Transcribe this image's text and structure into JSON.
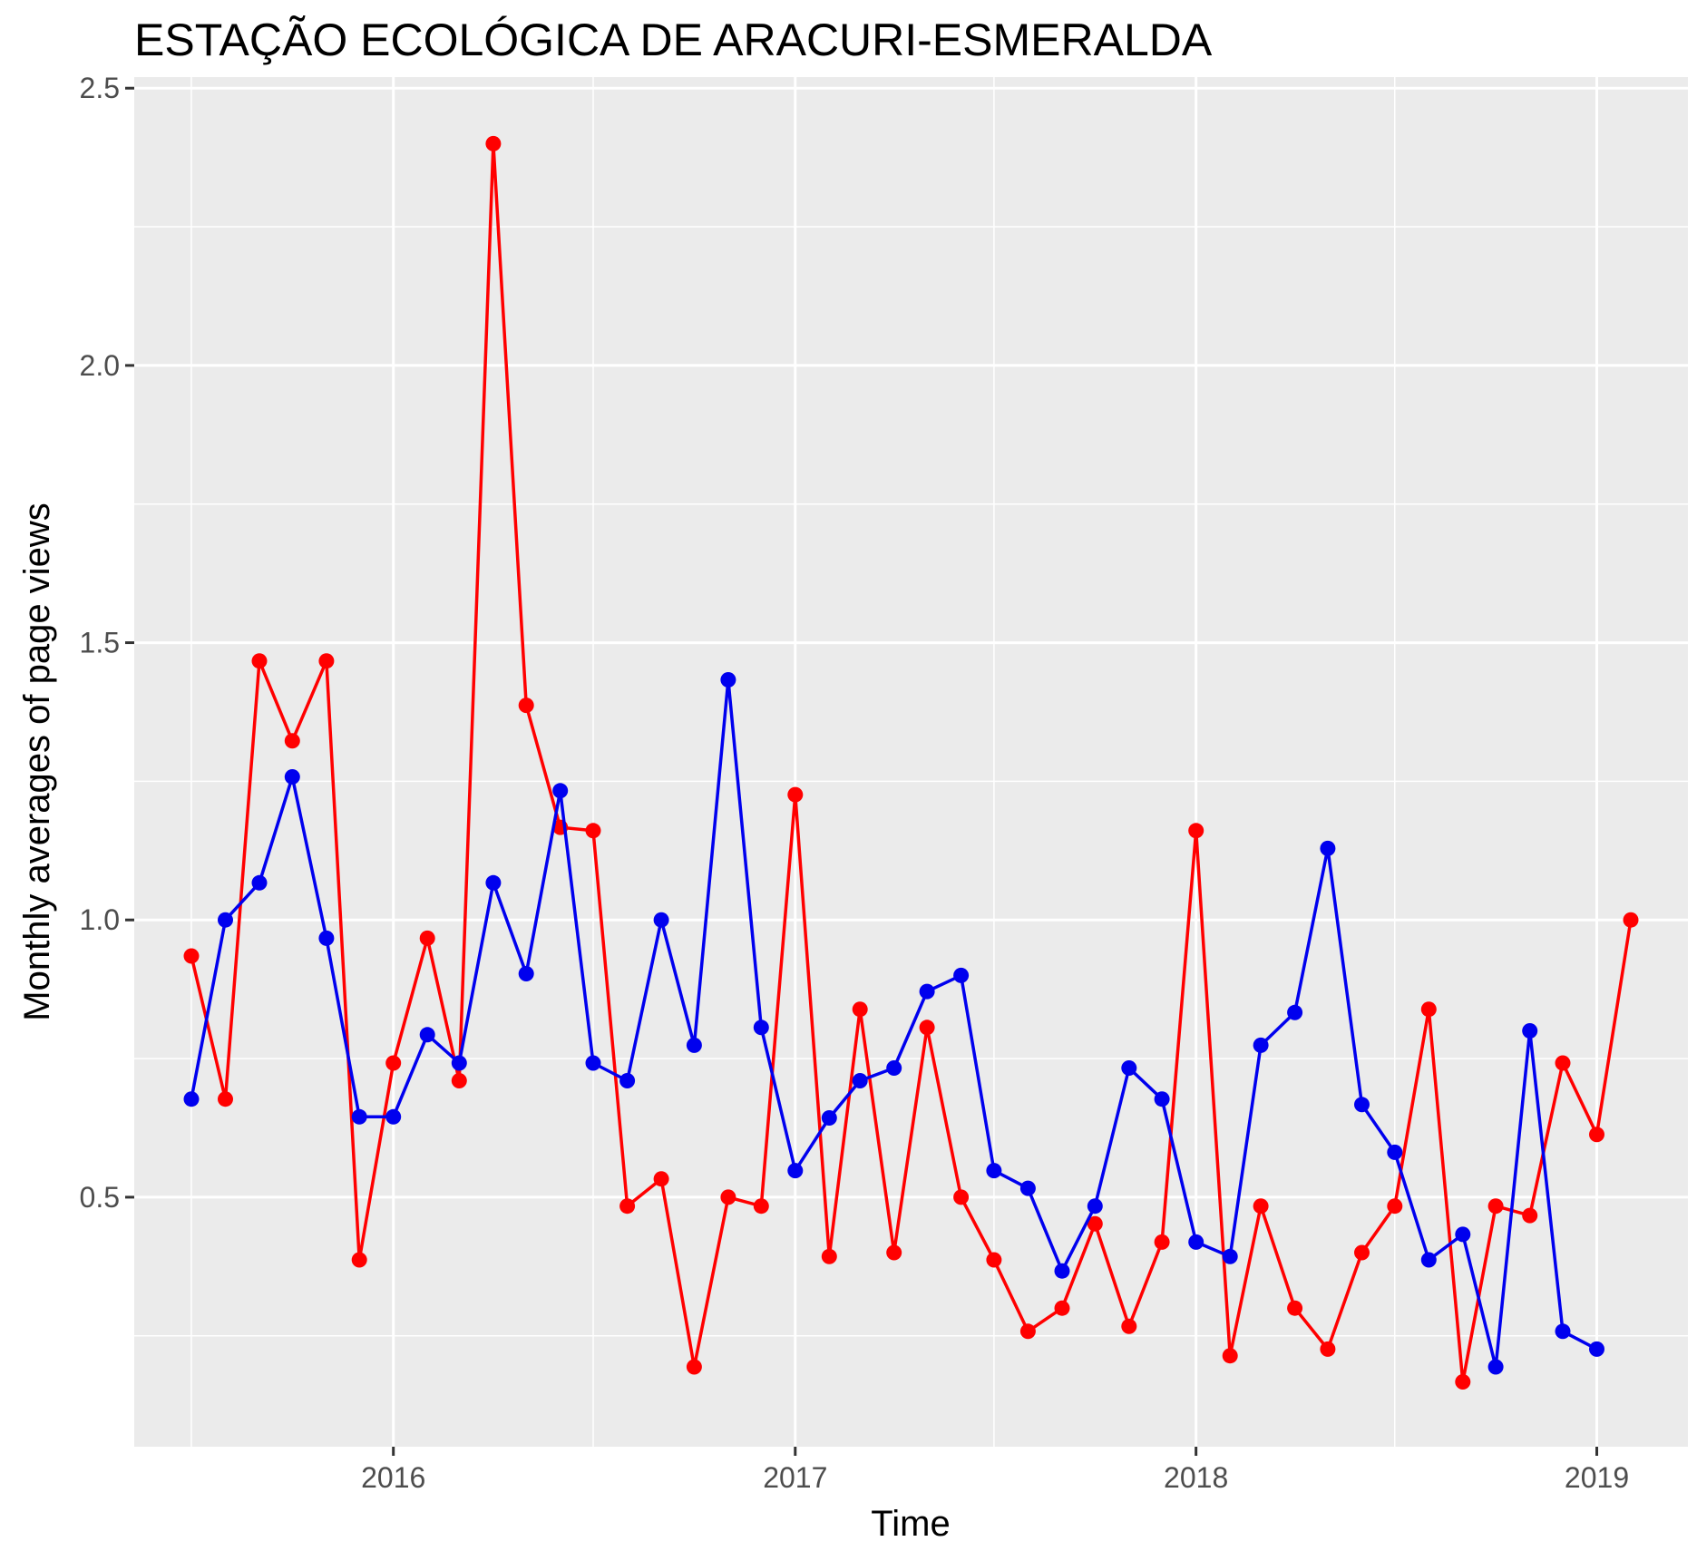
{
  "chart_data": {
    "type": "line",
    "title": "ESTAÇÃO ECOLÓGICA DE ARACURI-ESMERALDA",
    "xlabel": "Time",
    "ylabel": "Monthly averages of page views",
    "x_ticks": [
      "2016",
      "2017",
      "2018",
      "2019"
    ],
    "y_ticks": [
      "0.5",
      "1.0",
      "1.5",
      "2.0",
      "2.5"
    ],
    "ylim": [
      0.05,
      2.52
    ],
    "xlim": [
      "2015-05-10",
      "2019-03-25"
    ],
    "grid": true,
    "series": [
      {
        "color": "#ff0000",
        "x": [
          "2015-07",
          "2015-08",
          "2015-09",
          "2015-10",
          "2015-11",
          "2015-12",
          "2016-01",
          "2016-02",
          "2016-03",
          "2016-04",
          "2016-05",
          "2016-06",
          "2016-07",
          "2016-08",
          "2016-09",
          "2016-10",
          "2016-11",
          "2016-12",
          "2017-01",
          "2017-02",
          "2017-03",
          "2017-04",
          "2017-05",
          "2017-06",
          "2017-07",
          "2017-08",
          "2017-09",
          "2017-10",
          "2017-11",
          "2017-12",
          "2018-01",
          "2018-02",
          "2018-03",
          "2018-04",
          "2018-05",
          "2018-06",
          "2018-07",
          "2018-08",
          "2018-09",
          "2018-10",
          "2018-11",
          "2018-12",
          "2019-01",
          "2019-02"
        ],
        "values": [
          0.935,
          0.677,
          1.467,
          1.323,
          1.467,
          0.387,
          0.742,
          0.967,
          0.71,
          2.4,
          1.387,
          1.167,
          1.161,
          0.484,
          0.533,
          0.194,
          0.5,
          0.484,
          1.226,
          0.393,
          0.839,
          0.4,
          0.806,
          0.5,
          0.387,
          0.258,
          0.3,
          0.452,
          0.267,
          0.419,
          1.161,
          0.214,
          0.484,
          0.3,
          0.226,
          0.4,
          0.484,
          0.839,
          0.167,
          0.484,
          0.467,
          0.742,
          0.613,
          1.0
        ]
      },
      {
        "color": "#0000ee",
        "x": [
          "2015-07",
          "2015-08",
          "2015-09",
          "2015-10",
          "2015-11",
          "2015-12",
          "2016-01",
          "2016-02",
          "2016-03",
          "2016-04",
          "2016-05",
          "2016-06",
          "2016-07",
          "2016-08",
          "2016-09",
          "2016-10",
          "2016-11",
          "2016-12",
          "2017-01",
          "2017-02",
          "2017-03",
          "2017-04",
          "2017-05",
          "2017-06",
          "2017-07",
          "2017-08",
          "2017-09",
          "2017-10",
          "2017-11",
          "2017-12",
          "2018-01",
          "2018-02",
          "2018-03",
          "2018-04",
          "2018-05",
          "2018-06",
          "2018-07",
          "2018-08",
          "2018-09",
          "2018-10",
          "2018-11",
          "2018-12",
          "2019-01"
        ],
        "values": [
          0.677,
          1.0,
          1.067,
          1.258,
          0.967,
          0.645,
          0.645,
          0.793,
          0.742,
          1.067,
          0.903,
          1.233,
          0.742,
          0.71,
          1.0,
          0.774,
          1.433,
          0.806,
          0.548,
          0.643,
          0.71,
          0.733,
          0.871,
          0.9,
          0.548,
          0.516,
          0.367,
          0.484,
          0.733,
          0.677,
          0.419,
          0.393,
          0.774,
          0.833,
          1.129,
          0.667,
          0.581,
          0.387,
          0.433,
          0.194,
          0.8,
          0.258,
          0.226
        ]
      }
    ]
  }
}
